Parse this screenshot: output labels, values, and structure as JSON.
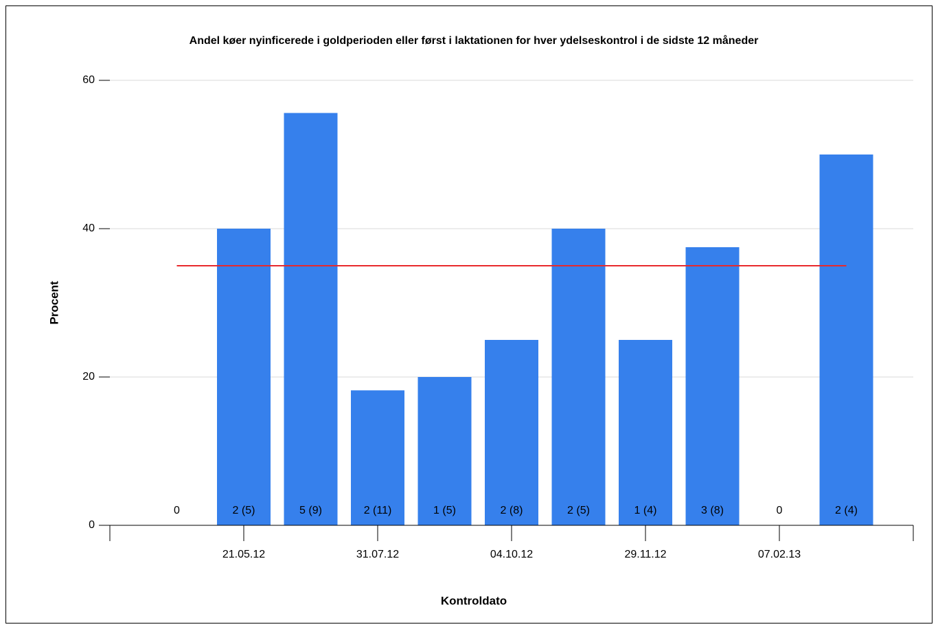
{
  "chart_data": {
    "type": "bar",
    "title": "Andel køer nyinficerede i goldperioden eller først i laktationen for hver ydelseskontrol i de sidste 12 måneder",
    "x_label": "Kontroldato",
    "y_label": "Procent",
    "categories": [
      null,
      "21.05.12",
      null,
      "31.07.12",
      null,
      "04.10.12",
      null,
      "29.11.12",
      null,
      "07.02.13",
      null
    ],
    "values": [
      0,
      40,
      55.6,
      18.2,
      20,
      25,
      40,
      25,
      37.5,
      0,
      50
    ],
    "value_labels": [
      "0",
      "2 (5)",
      "5 (9)",
      "2 (11)",
      "1 (5)",
      "2 (8)",
      "2 (5)",
      "1 (4)",
      "3 (8)",
      "0",
      "2 (4)"
    ],
    "color": "#3680ec",
    "reference_line": {
      "value": 35,
      "color": "#e8282b"
    },
    "ylim": [
      0,
      60
    ],
    "yticks": [
      0,
      20,
      40,
      60
    ],
    "grid": true
  }
}
